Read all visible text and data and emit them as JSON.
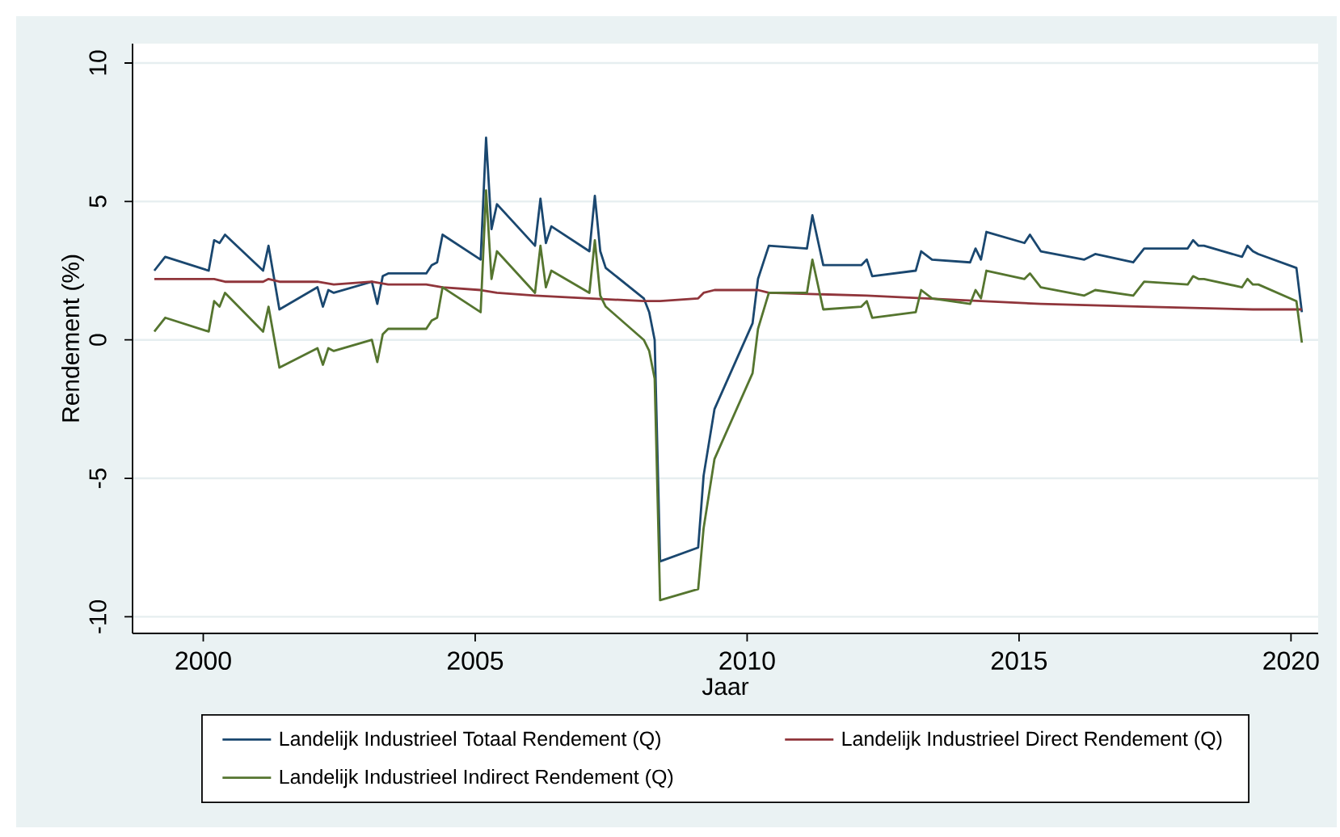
{
  "chart_data": {
    "type": "line",
    "xlabel": "Jaar",
    "ylabel": "Rendement (%)",
    "xlim": [
      1998.7,
      2020.5
    ],
    "xticks": [
      2000,
      2005,
      2010,
      2015,
      2020
    ],
    "ylim": [
      -10.6,
      10.7
    ],
    "yticks": [
      -10,
      -5,
      0,
      5,
      10
    ],
    "grid": "y",
    "legend": "bottom",
    "series": [
      {
        "name": "Landelijk Industrieel  Totaal Rendement (Q)",
        "color": "#1a476f",
        "x": [
          1999.1,
          1999.3,
          2000.1,
          2000.2,
          2000.3,
          2000.4,
          2001.1,
          2001.2,
          2001.4,
          2002.1,
          2002.2,
          2002.3,
          2002.4,
          2003.1,
          2003.2,
          2003.3,
          2003.4,
          2004.1,
          2004.2,
          2004.3,
          2004.4,
          2005.1,
          2005.2,
          2005.3,
          2005.4,
          2006.1,
          2006.2,
          2006.3,
          2006.4,
          2007.1,
          2007.2,
          2007.3,
          2007.4,
          2008.1,
          2008.2,
          2008.3,
          2008.4,
          2009.1,
          2009.2,
          2009.4,
          2010.1,
          2010.2,
          2010.4,
          2011.1,
          2011.2,
          2011.4,
          2012.1,
          2012.2,
          2012.3,
          2013.1,
          2013.2,
          2013.4,
          2014.1,
          2014.2,
          2014.3,
          2014.4,
          2015.1,
          2015.2,
          2015.4,
          2016.2,
          2016.4,
          2017.1,
          2017.3,
          2018.1,
          2018.2,
          2018.3,
          2018.4,
          2019.1,
          2019.2,
          2019.3,
          2019.4,
          2020.1,
          2020.2
        ],
        "values": [
          2.5,
          3.0,
          2.5,
          3.6,
          3.5,
          3.8,
          2.5,
          3.4,
          1.1,
          1.9,
          1.2,
          1.8,
          1.7,
          2.1,
          1.3,
          2.3,
          2.4,
          2.4,
          2.7,
          2.8,
          3.8,
          2.9,
          7.3,
          4.0,
          4.9,
          3.4,
          5.1,
          3.5,
          4.1,
          3.2,
          5.2,
          3.2,
          2.6,
          1.5,
          1.0,
          0.0,
          -8.0,
          -7.5,
          -4.9,
          -2.5,
          0.6,
          2.2,
          3.4,
          3.3,
          4.5,
          2.7,
          2.7,
          2.9,
          2.3,
          2.5,
          3.2,
          2.9,
          2.8,
          3.3,
          2.9,
          3.9,
          3.5,
          3.8,
          3.2,
          2.9,
          3.1,
          2.8,
          3.3,
          3.3,
          3.6,
          3.4,
          3.4,
          3.0,
          3.4,
          3.2,
          3.1,
          2.6,
          1.0
        ]
      },
      {
        "name": "Landelijk Industrieel  Direct Rendement (Q)",
        "color": "#90353b",
        "x": [
          1999.1,
          2000.1,
          2000.2,
          2000.4,
          2001.1,
          2001.2,
          2001.4,
          2002.1,
          2002.4,
          2003.1,
          2003.4,
          2004.1,
          2004.4,
          2005.1,
          2005.4,
          2006.1,
          2007.1,
          2008.1,
          2008.4,
          2009.1,
          2009.2,
          2009.4,
          2010.2,
          2010.4,
          2012.2,
          2014.3,
          2015.4,
          2017.3,
          2019.3,
          2020.2
        ],
        "values": [
          2.2,
          2.2,
          2.2,
          2.1,
          2.1,
          2.2,
          2.1,
          2.1,
          2.0,
          2.1,
          2.0,
          2.0,
          1.9,
          1.8,
          1.7,
          1.6,
          1.5,
          1.4,
          1.4,
          1.5,
          1.7,
          1.8,
          1.8,
          1.7,
          1.6,
          1.4,
          1.3,
          1.2,
          1.1,
          1.1
        ]
      },
      {
        "name": "Landelijk Industrieel  Indirect Rendement (Q)",
        "color": "#55752f",
        "x": [
          1999.1,
          1999.3,
          2000.1,
          2000.2,
          2000.3,
          2000.4,
          2001.1,
          2001.2,
          2001.4,
          2002.1,
          2002.2,
          2002.3,
          2002.4,
          2003.1,
          2003.2,
          2003.3,
          2003.4,
          2004.1,
          2004.2,
          2004.3,
          2004.4,
          2005.1,
          2005.2,
          2005.3,
          2005.4,
          2006.1,
          2006.2,
          2006.3,
          2006.4,
          2007.1,
          2007.2,
          2007.3,
          2007.4,
          2008.1,
          2008.2,
          2008.3,
          2008.4,
          2009.1,
          2009.2,
          2009.4,
          2010.1,
          2010.2,
          2010.4,
          2011.1,
          2011.2,
          2011.4,
          2012.1,
          2012.2,
          2012.3,
          2013.1,
          2013.2,
          2013.4,
          2014.1,
          2014.2,
          2014.3,
          2014.4,
          2015.1,
          2015.2,
          2015.4,
          2016.2,
          2016.4,
          2017.1,
          2017.3,
          2018.1,
          2018.2,
          2018.3,
          2018.4,
          2019.1,
          2019.2,
          2019.3,
          2019.4,
          2020.1,
          2020.2
        ],
        "values": [
          0.3,
          0.8,
          0.3,
          1.4,
          1.2,
          1.7,
          0.3,
          1.2,
          -1.0,
          -0.3,
          -0.9,
          -0.3,
          -0.4,
          0.0,
          -0.8,
          0.2,
          0.4,
          0.4,
          0.7,
          0.8,
          1.9,
          1.0,
          5.4,
          2.2,
          3.2,
          1.7,
          3.4,
          1.9,
          2.5,
          1.7,
          3.6,
          1.6,
          1.2,
          0.0,
          -0.4,
          -1.4,
          -9.4,
          -9.0,
          -6.8,
          -4.3,
          -1.2,
          0.4,
          1.7,
          1.7,
          2.9,
          1.1,
          1.2,
          1.4,
          0.8,
          1.0,
          1.8,
          1.5,
          1.3,
          1.8,
          1.5,
          2.5,
          2.2,
          2.4,
          1.9,
          1.6,
          1.8,
          1.6,
          2.1,
          2.0,
          2.3,
          2.2,
          2.2,
          1.9,
          2.2,
          2.0,
          2.0,
          1.4,
          -0.1
        ]
      }
    ]
  }
}
